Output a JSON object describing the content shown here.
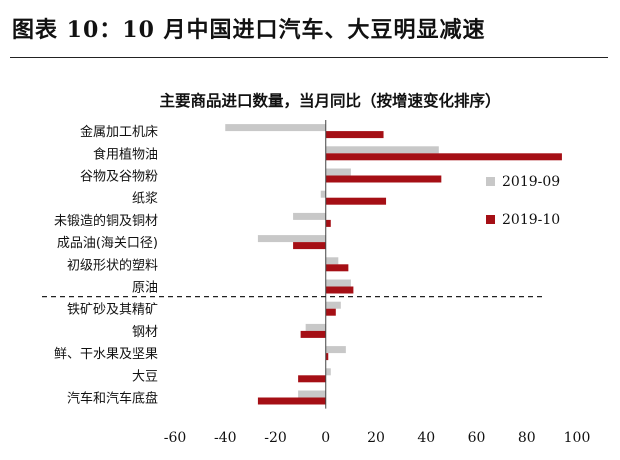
{
  "figure_title": "图表 10：10 月中国进口汽车、大豆明显减速",
  "chart_data": {
    "type": "bar",
    "orientation": "horizontal",
    "title": "主要商品进口数量，当月同比（按增速变化排序）",
    "categories": [
      "金属加工机床",
      "食用植物油",
      "谷物及谷物粉",
      "纸浆",
      "未锻造的铜及铜材",
      "成品油(海关口径)",
      "初级形状的塑料",
      "原油",
      "铁矿砂及其精矿",
      "钢材",
      "鲜、干水果及坚果",
      "大豆",
      "汽车和汽车底盘"
    ],
    "series": [
      {
        "name": "2019-09",
        "color": "#c8c8c8",
        "values": [
          -40,
          45,
          10,
          -2,
          -13,
          -27,
          5,
          10,
          6,
          -8,
          8,
          2,
          -11
        ]
      },
      {
        "name": "2019-10",
        "color": "#a50f15",
        "values": [
          23,
          94,
          46,
          24,
          2,
          -13,
          9,
          11,
          4,
          -10,
          1,
          -11,
          -27
        ]
      }
    ],
    "xlim": [
      -60,
      100
    ],
    "xticks": [
      "-60",
      "-40",
      "-20",
      "0",
      "20",
      "40",
      "60",
      "80",
      "100"
    ],
    "divider_after_index": 7,
    "grid": false,
    "legend_position": "right"
  }
}
